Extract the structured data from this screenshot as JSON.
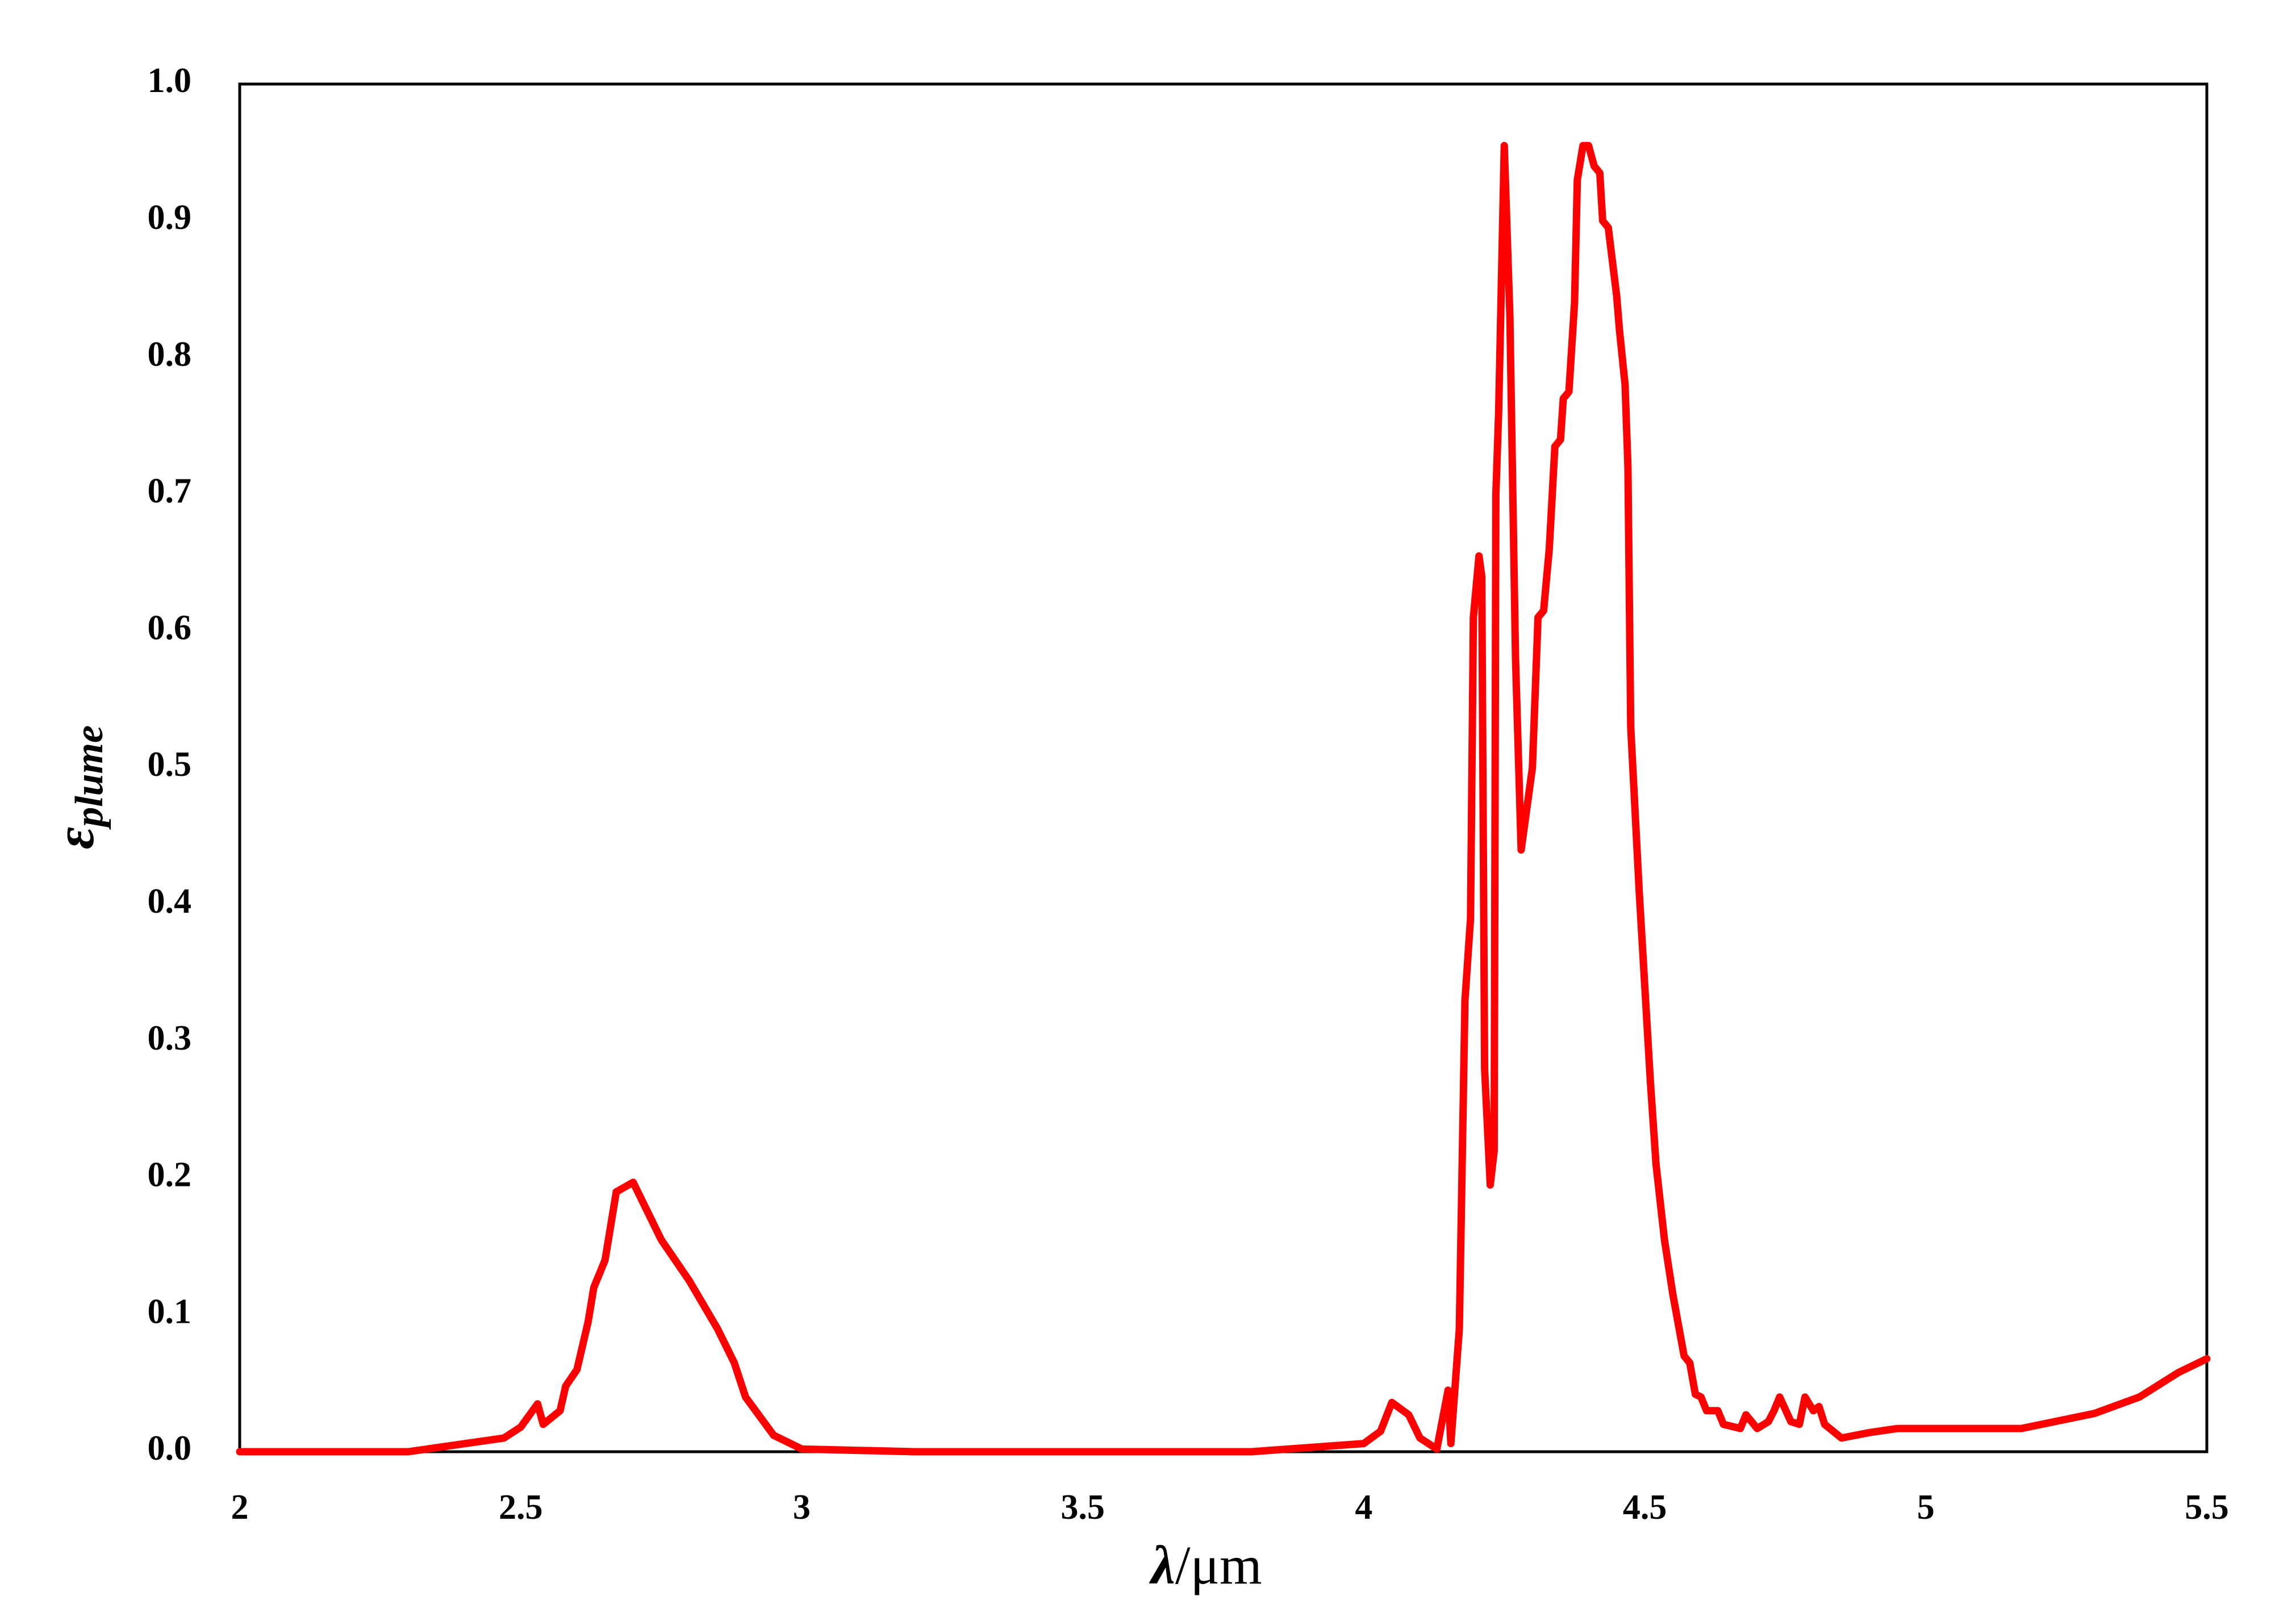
{
  "chart_data": {
    "type": "line",
    "xlabel": {
      "symbol": "λ",
      "unit": "/μm"
    },
    "ylabel": {
      "symbol": "ε",
      "subscript": "plume"
    },
    "xlim": [
      2,
      5.5
    ],
    "xticks": [
      2,
      2.5,
      3,
      3.5,
      4,
      4.5,
      5,
      5.5
    ],
    "ylim": [
      0,
      1
    ],
    "yticks": [
      {
        "value": 0,
        "label": "0.0"
      },
      {
        "value": 0.1,
        "label": "0.1"
      },
      {
        "value": 0.2,
        "label": "0.2"
      },
      {
        "value": 0.3,
        "label": "0.3"
      },
      {
        "value": 0.4,
        "label": "0.4"
      },
      {
        "value": 0.5,
        "label": "0.5"
      },
      {
        "value": 0.6,
        "label": "0.6"
      },
      {
        "value": 0.7,
        "label": "0.7"
      },
      {
        "value": 0.8,
        "label": "0.8"
      },
      {
        "value": 0.9,
        "label": "0.9"
      },
      {
        "value": 1,
        "label": "1.0"
      }
    ],
    "grid": false,
    "color": "#ff0000",
    "x": [
      2,
      2.3,
      2.47,
      2.5,
      2.53,
      2.54,
      2.57,
      2.58,
      2.6,
      2.62,
      2.63,
      2.65,
      2.67,
      2.7,
      2.75,
      2.8,
      2.85,
      2.88,
      2.9,
      2.95,
      3.0,
      3.2,
      3.8,
      4.0,
      4.03,
      4.05,
      4.08,
      4.1,
      4.13,
      4.15,
      4.155,
      4.17,
      4.18,
      4.19,
      4.195,
      4.205,
      4.21,
      4.215,
      4.225,
      4.232,
      4.235,
      4.24,
      4.25,
      4.26,
      4.27,
      4.28,
      4.29,
      4.3,
      4.31,
      4.32,
      4.33,
      4.34,
      4.35,
      4.355,
      4.365,
      4.375,
      4.38,
      4.39,
      4.4,
      4.41,
      4.42,
      4.425,
      4.435,
      4.45,
      4.455,
      4.465,
      4.47,
      4.475,
      4.49,
      4.5,
      4.51,
      4.52,
      4.535,
      4.55,
      4.57,
      4.58,
      4.59,
      4.6,
      4.61,
      4.63,
      4.64,
      4.67,
      4.68,
      4.7,
      4.72,
      4.73,
      4.74,
      4.76,
      4.775,
      4.785,
      4.8,
      4.81,
      4.82,
      4.85,
      4.9,
      4.95,
      5.17,
      5.3,
      5.38,
      5.45,
      5.5
    ],
    "values": [
      0,
      0,
      0.01,
      0.018,
      0.035,
      0.02,
      0.03,
      0.048,
      0.06,
      0.095,
      0.12,
      0.14,
      0.19,
      0.197,
      0.155,
      0.125,
      0.09,
      0.065,
      0.04,
      0.012,
      0.002,
      0,
      0,
      0.006,
      0.015,
      0.036,
      0.027,
      0.01,
      0.002,
      0.045,
      0.006,
      0.09,
      0.33,
      0.39,
      0.61,
      0.655,
      0.64,
      0.28,
      0.195,
      0.22,
      0.7,
      0.76,
      0.955,
      0.83,
      0.58,
      0.44,
      0.47,
      0.5,
      0.61,
      0.615,
      0.66,
      0.735,
      0.74,
      0.77,
      0.775,
      0.84,
      0.93,
      0.955,
      0.955,
      0.94,
      0.935,
      0.9,
      0.895,
      0.845,
      0.82,
      0.78,
      0.72,
      0.53,
      0.41,
      0.34,
      0.27,
      0.21,
      0.155,
      0.115,
      0.07,
      0.065,
      0.042,
      0.04,
      0.03,
      0.03,
      0.02,
      0.017,
      0.027,
      0.017,
      0.022,
      0.03,
      0.04,
      0.022,
      0.02,
      0.04,
      0.03,
      0.033,
      0.02,
      0.01,
      0.014,
      0.017,
      0.017,
      0.028,
      0.04,
      0.058,
      0.068
    ]
  }
}
